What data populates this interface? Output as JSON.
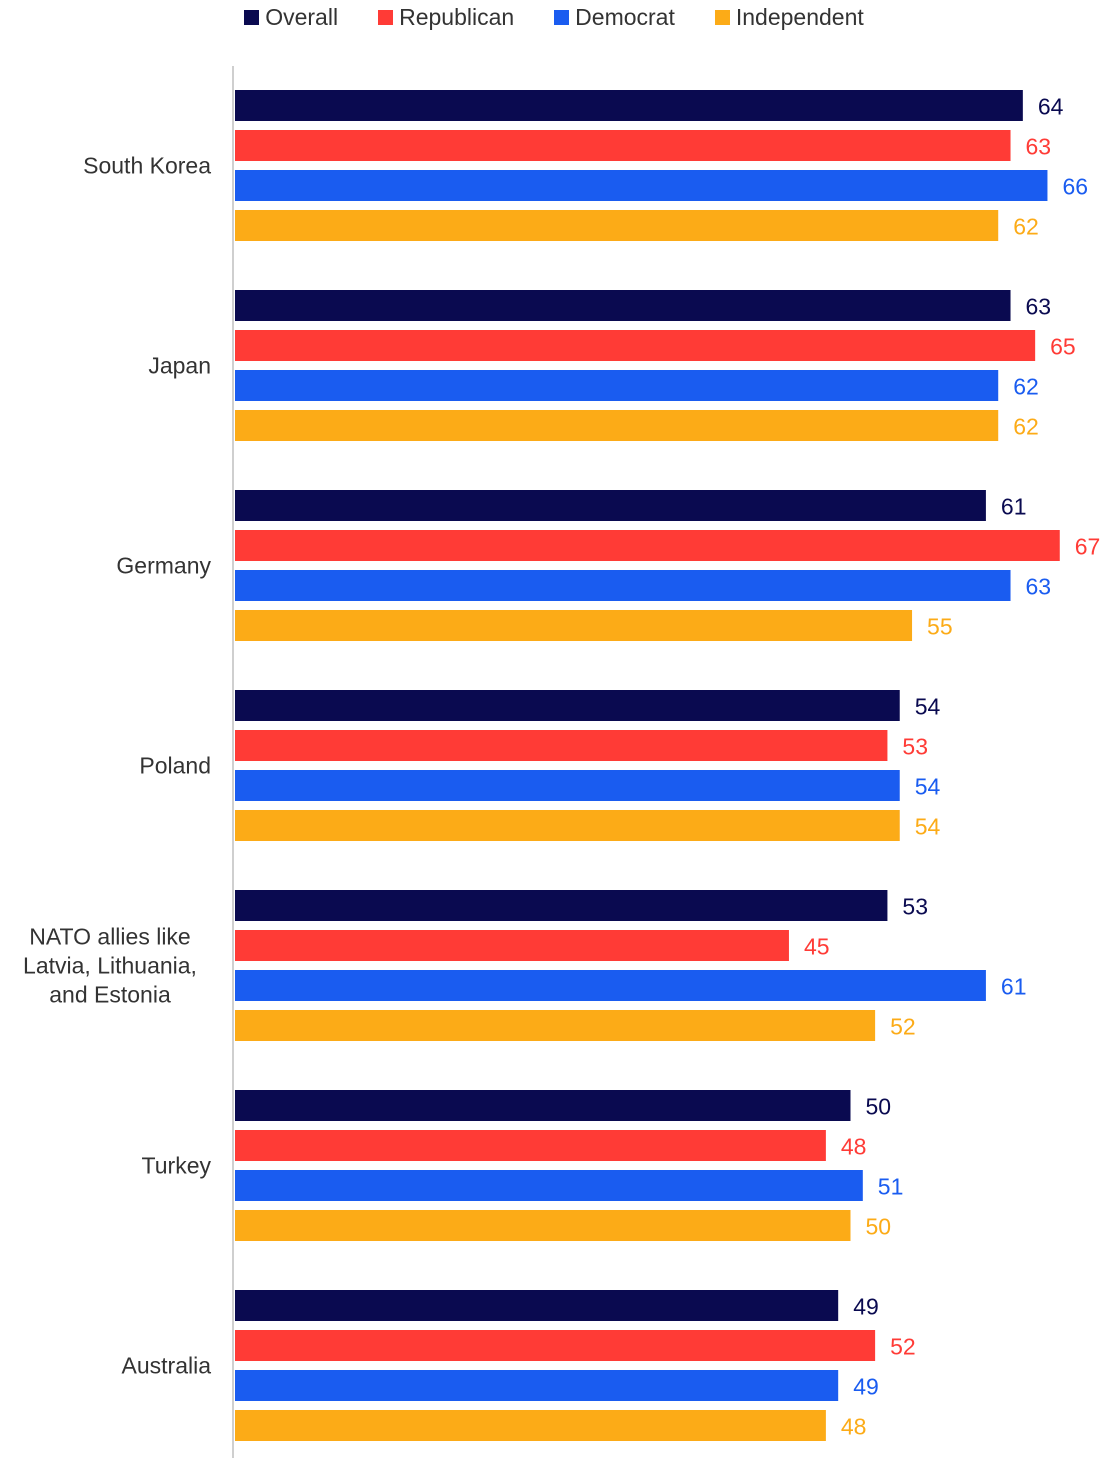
{
  "chart_data": {
    "type": "bar",
    "orientation": "horizontal",
    "categories": [
      "South Korea",
      "Japan",
      "Germany",
      "Poland",
      "NATO allies like Latvia, Lithuania, and Estonia",
      "Turkey",
      "Australia"
    ],
    "category_lines": [
      [
        "South Korea"
      ],
      [
        "Japan"
      ],
      [
        "Germany"
      ],
      [
        "Poland"
      ],
      [
        "NATO allies like",
        "Latvia, Lithuania,",
        "and Estonia"
      ],
      [
        "Turkey"
      ],
      [
        "Australia"
      ]
    ],
    "series": [
      {
        "name": "Overall",
        "color": "#0a0a50",
        "values": [
          64,
          63,
          61,
          54,
          53,
          50,
          49
        ]
      },
      {
        "name": "Republican",
        "color": "#ff3b36",
        "values": [
          63,
          65,
          67,
          53,
          45,
          48,
          52
        ]
      },
      {
        "name": "Democrat",
        "color": "#1a5cf0",
        "values": [
          66,
          62,
          63,
          54,
          61,
          51,
          49
        ]
      },
      {
        "name": "Independent",
        "color": "#fcab17",
        "values": [
          62,
          62,
          55,
          54,
          52,
          50,
          48
        ]
      }
    ],
    "label_colors": [
      "#0a0a50",
      "#ff3b36",
      "#1a5cf0",
      "#fcab17"
    ],
    "xlim": [
      0,
      70
    ],
    "legend_position": "top-center",
    "grid": false,
    "title": "",
    "xlabel": "",
    "ylabel": ""
  }
}
